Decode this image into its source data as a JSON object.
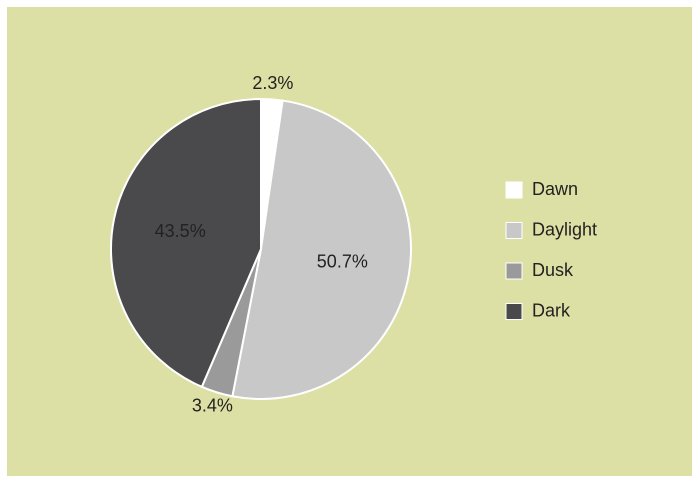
{
  "chart_data": {
    "type": "pie",
    "categories": [
      "Dawn",
      "Daylight",
      "Dusk",
      "Dark"
    ],
    "values": [
      2.3,
      50.7,
      3.4,
      43.5
    ],
    "value_labels": [
      "2.3%",
      "50.7%",
      "3.4%",
      "43.5%"
    ],
    "colors": [
      "#ffffff",
      "#c8c8c8",
      "#9a9a9a",
      "#4a4a4c"
    ],
    "legend": "right"
  }
}
